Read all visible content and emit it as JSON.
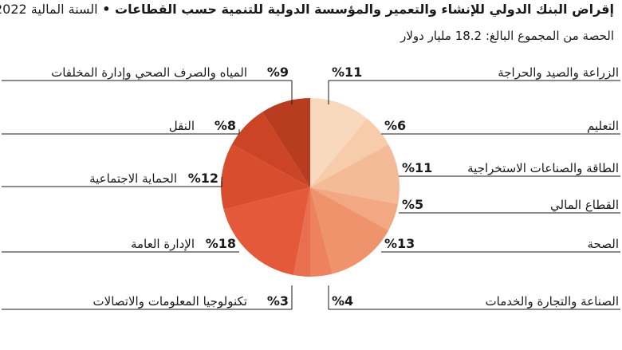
{
  "header": {
    "title_main": "إقراض البنك الدولي للإنشاء والتعمير والمؤسسة الدولية للتنمية حسب القطاعات",
    "title_sep": " • ",
    "title_year": "السنة المالية 2022",
    "subtitle": "الحصة من المجموع البالغ: 18.2 مليار دولار"
  },
  "chart_data": {
    "type": "pie",
    "title": "إقراض البنك الدولي للإنشاء والتعمير والمؤسسة الدولية للتنمية حسب القطاعات • السنة المالية 2022",
    "subtitle": "الحصة من المجموع البالغ: 18.2 مليار دولار",
    "unit": "%",
    "slices": [
      {
        "label": "الزراعة والصيد والحراجة",
        "value": 11,
        "value_label": "%11",
        "color": "#f9d9bd"
      },
      {
        "label": "التعليم",
        "value": 6,
        "value_label": "%6",
        "color": "#f6ccaa"
      },
      {
        "label": "الطاقة والصناعات الاستخراجية",
        "value": 11,
        "value_label": "%11",
        "color": "#f4bb98"
      },
      {
        "label": "القطاع المالي",
        "value": 5,
        "value_label": "%5",
        "color": "#f2a882"
      },
      {
        "label": "الصحة",
        "value": 13,
        "value_label": "%13",
        "color": "#ef936d"
      },
      {
        "label": "الصناعة والتجارة والخدمات",
        "value": 4,
        "value_label": "%4",
        "color": "#ec8260"
      },
      {
        "label": "تكنولوجيا المعلومات والاتصالات",
        "value": 3,
        "value_label": "%3",
        "color": "#e86f4f"
      },
      {
        "label": "الإدارة العامة",
        "value": 18,
        "value_label": "%18",
        "color": "#e5593b"
      },
      {
        "label": "الحماية الاجتماعية",
        "value": 12,
        "value_label": "%12",
        "color": "#d94d2f"
      },
      {
        "label": "النقل",
        "value": 8,
        "value_label": "%8",
        "color": "#cc4426"
      },
      {
        "label": "المياه والصرف الصحي وإدارة المخلفات",
        "value": 9,
        "value_label": "%9",
        "color": "#b73c20"
      }
    ]
  }
}
